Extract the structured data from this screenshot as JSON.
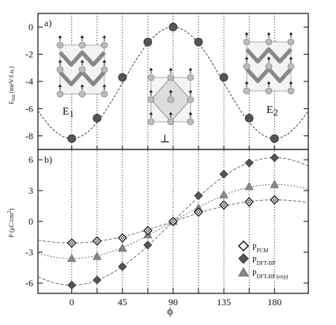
{
  "chart_data": [
    {
      "panel": "a)",
      "type": "line",
      "ylabel_main": "E",
      "ylabel_sub": "tot",
      "ylabel_unit": "(meV/f.u.)",
      "ylim": [
        -9,
        1
      ],
      "yticks": [
        0,
        -2,
        -4,
        -6,
        -8
      ],
      "xlim": [
        -30,
        210
      ],
      "xtick_positions": [
        0,
        22.5,
        45,
        67.5,
        90,
        112.5,
        135,
        157.5,
        180
      ],
      "series": [
        {
          "x": [
            0,
            22.5,
            45,
            67.5,
            90,
            112.5,
            135,
            157.5,
            180
          ],
          "y": [
            -8.2,
            -6.7,
            -3.7,
            -1.1,
            0.0,
            -1.1,
            -3.7,
            -6.7,
            -8.2
          ],
          "curve": [
            [
              -30,
              -7.6
            ],
            [
              0,
              -8.2
            ],
            [
              22.5,
              -6.7
            ],
            [
              45,
              -3.7
            ],
            [
              67.5,
              -1.1
            ],
            [
              90,
              0.0
            ],
            [
              112.5,
              -1.1
            ],
            [
              135,
              -3.7
            ],
            [
              157.5,
              -6.7
            ],
            [
              180,
              -8.2
            ],
            [
              210,
              -7.6
            ]
          ]
        }
      ],
      "annotations": {
        "e1": "E",
        "e1_sub": "1",
        "perp": "⊥",
        "e2": "E",
        "e2_sub": "2"
      }
    },
    {
      "panel": "b)",
      "type": "line",
      "ylabel_main": "P",
      "ylabel_unit": "(μC/cm",
      "ylabel_sup": "2",
      "ylabel_close": ")",
      "ylim": [
        -7,
        7
      ],
      "yticks": [
        6,
        3,
        0,
        -3,
        -6
      ],
      "xlabel": "ϕ",
      "xlim": [
        -30,
        210
      ],
      "xticks": [
        "0",
        "45",
        "90",
        "135",
        "180"
      ],
      "xtick_values": [
        0,
        45,
        90,
        135,
        180
      ],
      "xtick_positions": [
        0,
        22.5,
        45,
        67.5,
        90,
        112.5,
        135,
        157.5,
        180
      ],
      "series": [
        {
          "name": "P",
          "name_sub": "PCM",
          "marker": "open-diamond",
          "x": [
            0,
            22.5,
            45,
            67.5,
            90,
            112.5,
            135,
            157.5,
            180
          ],
          "y": [
            -2.1,
            -1.9,
            -1.6,
            -0.9,
            0.0,
            0.9,
            1.6,
            1.9,
            2.1
          ],
          "curve": [
            [
              -30,
              -1.9
            ],
            [
              0,
              -2.1
            ],
            [
              90,
              0
            ],
            [
              180,
              2.1
            ],
            [
              210,
              1.9
            ]
          ]
        },
        {
          "name": "P",
          "name_sub": "DFT-BP",
          "marker": "filled-diamond",
          "x": [
            0,
            22.5,
            45,
            67.5,
            90,
            112.5,
            135,
            157.5,
            180
          ],
          "y": [
            -6.2,
            -5.7,
            -4.4,
            -2.3,
            0.0,
            2.5,
            4.6,
            5.7,
            6.2
          ],
          "curve": [
            [
              -30,
              -5.6
            ],
            [
              0,
              -6.2
            ],
            [
              90,
              0
            ],
            [
              180,
              6.2
            ],
            [
              210,
              5.6
            ]
          ]
        },
        {
          "name": "P",
          "name_sub": "DFT-BP (exp)",
          "marker": "filled-triangle",
          "x": [
            0,
            22.5,
            45,
            67.5,
            90,
            112.5,
            135,
            157.5,
            180
          ],
          "y": [
            -3.6,
            -3.4,
            -2.6,
            -1.3,
            0.0,
            1.3,
            2.6,
            3.4,
            3.6
          ],
          "curve": [
            [
              -30,
              -3.3
            ],
            [
              0,
              -3.6
            ],
            [
              90,
              0
            ],
            [
              180,
              3.6
            ],
            [
              210,
              3.3
            ]
          ]
        }
      ]
    }
  ],
  "colors": {
    "open_marker": "#ffffff",
    "filled_marker": "#555555",
    "triangle_marker": "#888888",
    "axis": "#111111"
  }
}
